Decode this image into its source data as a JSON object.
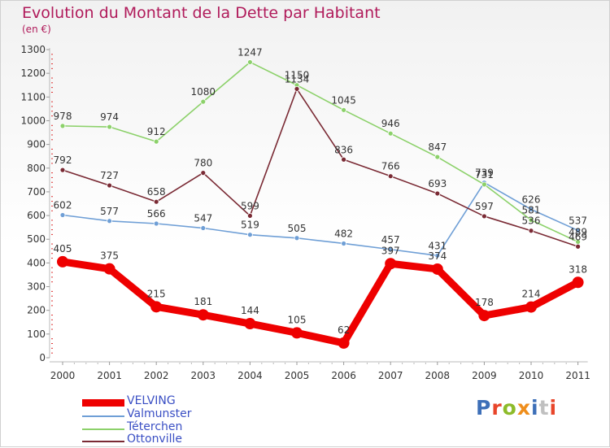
{
  "chart": {
    "title": "Evolution du Montant de la Dette par Habitant",
    "subtitle": "(en €)"
  },
  "logo": {
    "text": "Proxiti",
    "colors": [
      "#3d6fb8",
      "#e8452a",
      "#8dbb2a",
      "#ef8e1c",
      "#3d6fb8",
      "#c0c0c0",
      "#e8452a"
    ]
  },
  "chart_data": {
    "type": "line",
    "title": "Evolution du Montant de la Dette par Habitant",
    "subtitle": "(en €)",
    "x": [
      "2000",
      "2001",
      "2002",
      "2003",
      "2004",
      "2005",
      "2006",
      "2007",
      "2008",
      "2009",
      "2010",
      "2011"
    ],
    "ylim": [
      0,
      1300
    ],
    "yticks": [
      0,
      100,
      200,
      300,
      400,
      500,
      600,
      700,
      800,
      900,
      1000,
      1100,
      1200,
      1300
    ],
    "grid": false,
    "legend_position": "bottom-left",
    "series": [
      {
        "name": "VELVING",
        "color": "#ee0000",
        "emphasis": true,
        "values": [
          405,
          375,
          215,
          181,
          144,
          105,
          62,
          397,
          374,
          178,
          214,
          318
        ]
      },
      {
        "name": "Valmunster",
        "color": "#6f9fd6",
        "emphasis": false,
        "values": [
          602,
          577,
          566,
          547,
          519,
          505,
          482,
          457,
          431,
          739,
          626,
          537
        ]
      },
      {
        "name": "Téterchen",
        "color": "#8cd16a",
        "emphasis": false,
        "values": [
          978,
          974,
          912,
          1080,
          1247,
          1150,
          1045,
          946,
          847,
          731,
          581,
          489
        ]
      },
      {
        "name": "Ottonville",
        "color": "#7a2a34",
        "emphasis": false,
        "values": [
          792,
          727,
          658,
          780,
          599,
          1134,
          836,
          766,
          693,
          597,
          536,
          469
        ]
      }
    ]
  }
}
